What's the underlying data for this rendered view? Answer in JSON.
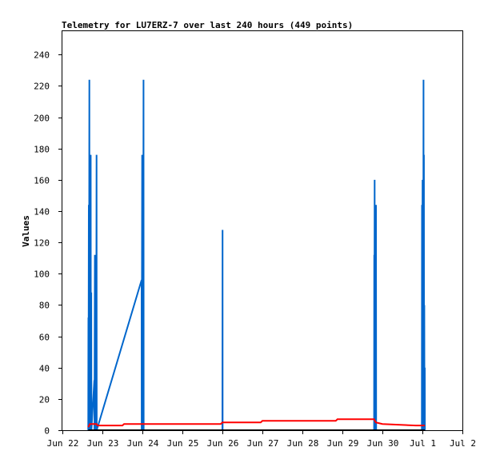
{
  "chart_data": {
    "type": "line",
    "title": "Telemetry for LU7ERZ-7 over last 240 hours (449 points)",
    "xlabel": "",
    "ylabel": "Values",
    "ylim": [
      0,
      255
    ],
    "yticks": [
      0,
      20,
      40,
      60,
      80,
      100,
      120,
      140,
      160,
      180,
      200,
      220,
      240
    ],
    "xlim": [
      "2024-06-22",
      "2024-07-02"
    ],
    "xtick_labels": [
      "Jun 22",
      "Jun 23",
      "Jun 24",
      "Jun 25",
      "Jun 26",
      "Jun 27",
      "Jun 28",
      "Jun 29",
      "Jun 30",
      "Jul 1",
      "Jul 2"
    ],
    "grid": false,
    "series": [
      {
        "color": "#0066cc",
        "points": [
          [
            "2024-06-22 15:30",
            0
          ],
          [
            "2024-06-22 15:35",
            72
          ],
          [
            "2024-06-22 15:40",
            0
          ],
          [
            "2024-06-22 15:50",
            144
          ],
          [
            "2024-06-22 15:55",
            0
          ],
          [
            "2024-06-22 16:10",
            224
          ],
          [
            "2024-06-22 16:15",
            0
          ],
          [
            "2024-06-22 17:00",
            176
          ],
          [
            "2024-06-22 17:05",
            0
          ],
          [
            "2024-06-22 17:20",
            88
          ],
          [
            "2024-06-22 17:25",
            0
          ],
          [
            "2024-06-22 19:10",
            32
          ],
          [
            "2024-06-22 19:15",
            0
          ],
          [
            "2024-06-22 19:30",
            112
          ],
          [
            "2024-06-22 19:35",
            0
          ],
          [
            "2024-06-22 20:10",
            96
          ],
          [
            "2024-06-22 20:15",
            0
          ],
          [
            "2024-06-22 20:30",
            176
          ],
          [
            "2024-06-22 20:35",
            0
          ],
          [
            "2024-06-23 23:30",
            96
          ],
          [
            "2024-06-23 23:35",
            0
          ],
          [
            "2024-06-23 23:50",
            176
          ],
          [
            "2024-06-23 23:55",
            0
          ],
          [
            "2024-06-24 00:05",
            48
          ],
          [
            "2024-06-24 00:10",
            0
          ],
          [
            "2024-06-24 00:20",
            96
          ],
          [
            "2024-06-24 00:25",
            0
          ],
          [
            "2024-06-24 00:40",
            224
          ],
          [
            "2024-06-24 00:45",
            0
          ],
          [
            "2024-06-24 01:00",
            0
          ],
          [
            "2024-06-26 00:00",
            0
          ],
          [
            "2024-06-26 00:05",
            128
          ],
          [
            "2024-06-26 00:10",
            0
          ],
          [
            "2024-06-29 19:00",
            0
          ],
          [
            "2024-06-29 19:05",
            112
          ],
          [
            "2024-06-29 19:10",
            0
          ],
          [
            "2024-06-29 19:20",
            160
          ],
          [
            "2024-06-29 19:25",
            0
          ],
          [
            "2024-06-29 19:40",
            112
          ],
          [
            "2024-06-29 19:45",
            0
          ],
          [
            "2024-06-29 20:10",
            144
          ],
          [
            "2024-06-29 20:15",
            0
          ],
          [
            "2024-06-30 23:40",
            0
          ],
          [
            "2024-06-30 23:45",
            144
          ],
          [
            "2024-06-30 23:50",
            0
          ],
          [
            "2024-07-01 00:05",
            160
          ],
          [
            "2024-07-01 00:10",
            0
          ],
          [
            "2024-07-01 00:20",
            120
          ],
          [
            "2024-07-01 00:25",
            0
          ],
          [
            "2024-07-01 00:40",
            224
          ],
          [
            "2024-07-01 00:45",
            0
          ],
          [
            "2024-07-01 00:55",
            176
          ],
          [
            "2024-07-01 01:00",
            0
          ],
          [
            "2024-07-01 01:10",
            80
          ],
          [
            "2024-07-01 01:15",
            0
          ],
          [
            "2024-07-01 01:25",
            40
          ],
          [
            "2024-07-01 01:30",
            0
          ]
        ]
      },
      {
        "color": "#ff0000",
        "points": [
          [
            "2024-06-22 15:30",
            2
          ],
          [
            "2024-06-22 16:30",
            4
          ],
          [
            "2024-06-22 20:30",
            4
          ],
          [
            "2024-06-22 21:00",
            3
          ],
          [
            "2024-06-23 00:00",
            3
          ],
          [
            "2024-06-23 12:00",
            3
          ],
          [
            "2024-06-23 13:00",
            4
          ],
          [
            "2024-06-24 00:00",
            4
          ],
          [
            "2024-06-25 00:00",
            4
          ],
          [
            "2024-06-25 23:00",
            4
          ],
          [
            "2024-06-26 00:00",
            5
          ],
          [
            "2024-06-26 23:00",
            5
          ],
          [
            "2024-06-27 00:00",
            6
          ],
          [
            "2024-06-28 00:00",
            6
          ],
          [
            "2024-06-28 20:00",
            6
          ],
          [
            "2024-06-28 21:00",
            7
          ],
          [
            "2024-06-29 19:00",
            7
          ],
          [
            "2024-06-29 20:00",
            5
          ],
          [
            "2024-06-30 00:00",
            4
          ],
          [
            "2024-06-30 20:00",
            3
          ],
          [
            "2024-07-01 01:30",
            3
          ]
        ]
      },
      {
        "color": "#000000",
        "points": [
          [
            "2024-06-22 15:30",
            0
          ],
          [
            "2024-07-01 01:30",
            0
          ]
        ]
      }
    ]
  }
}
